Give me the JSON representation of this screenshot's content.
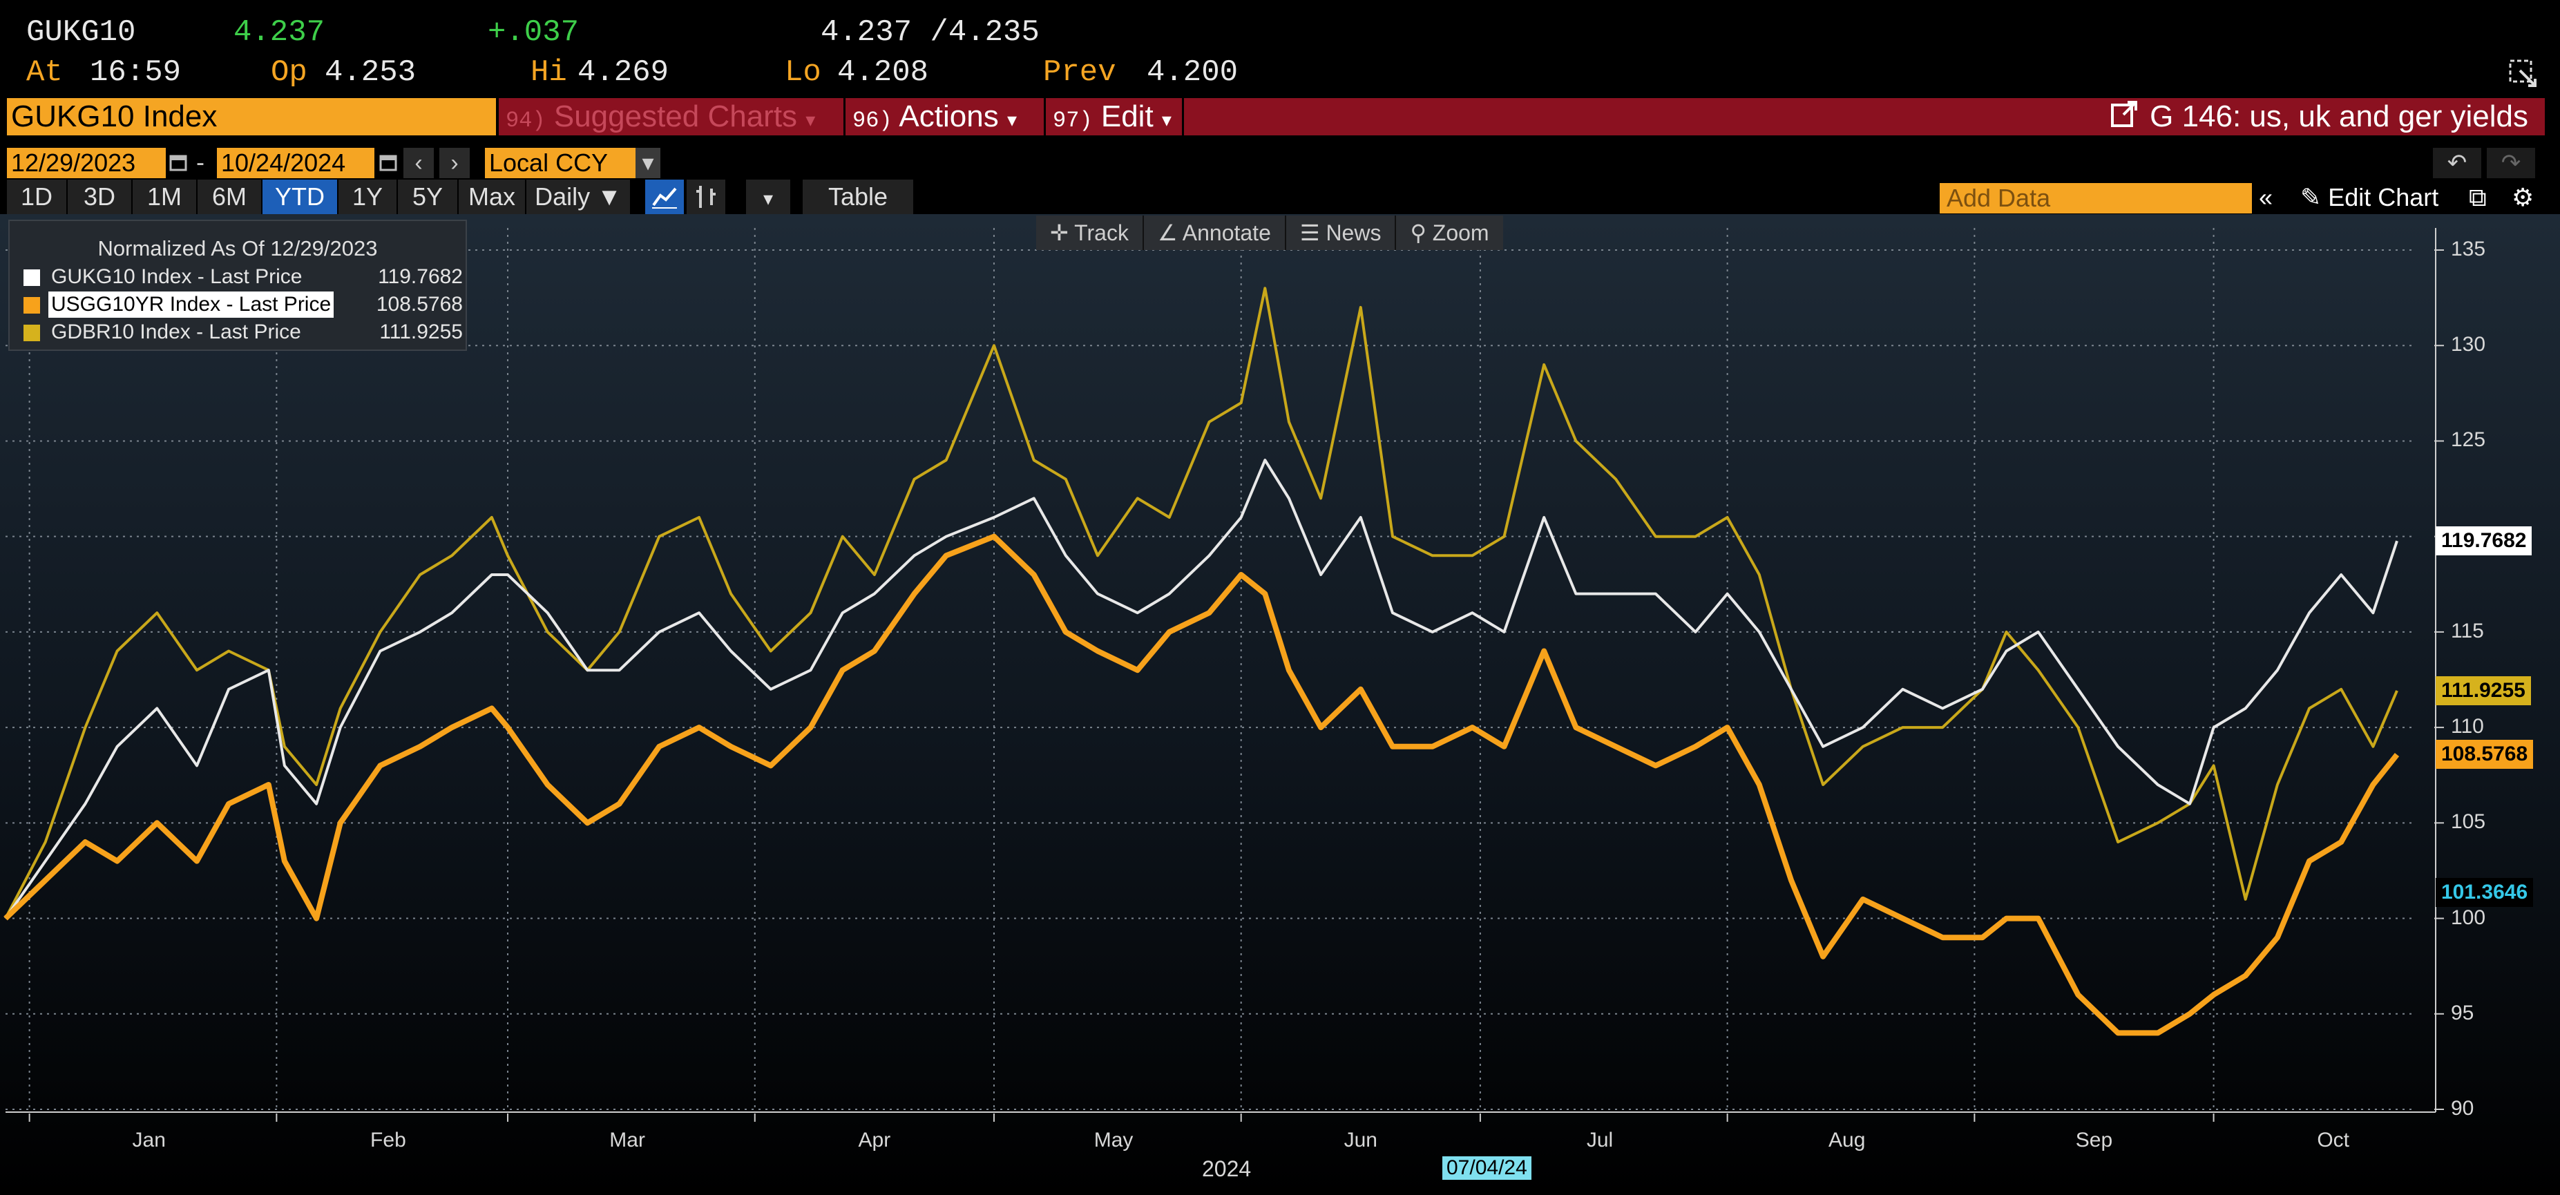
{
  "quote": {
    "ticker": "GUKG10",
    "last": "4.237",
    "change": "+.037",
    "bid_ask": "4.237 /4.235",
    "at_label": "At",
    "at_time": "16:59",
    "op_label": "Op",
    "op_value": "4.253",
    "hi_label": "Hi",
    "hi_value": "4.269",
    "lo_label": "Lo",
    "lo_value": "4.208",
    "prev_label": "Prev",
    "prev_value": "4.200"
  },
  "titlebar": {
    "security": "GUKG10 Index",
    "suggested_num": "94)",
    "suggested_label": "Suggested Charts",
    "actions_num": "96)",
    "actions_label": "Actions",
    "edit_num": "97)",
    "edit_label": "Edit",
    "chart_title": "G 146: us, uk and ger yields"
  },
  "daterow": {
    "start_date": "12/29/2023",
    "separator": "-",
    "end_date": "10/24/2024",
    "currency": "Local CCY"
  },
  "tabs": [
    "1D",
    "3D",
    "1M",
    "6M",
    "YTD",
    "1Y",
    "5Y",
    "Max"
  ],
  "active_tab": "YTD",
  "frequency": "Daily",
  "table_label": "Table",
  "add_data_placeholder": "Add Data",
  "edit_chart_label": "Edit Chart",
  "chart_toolbar": {
    "track": "Track",
    "annotate": "Annotate",
    "news": "News",
    "zoom": "Zoom"
  },
  "colors": {
    "gukg10": "#e8e8e8",
    "usgg10yr": "#f7a21b",
    "gdbr10": "#c9a81a",
    "accent_orange": "#f5a523",
    "title_red": "#8b1120",
    "active_blue": "#1d5fb8"
  },
  "legend": {
    "header": "Normalized As Of 12/29/2023",
    "items": [
      {
        "name": "GUKG10 Index - Last Price",
        "value": "119.7682",
        "color": "#ffffff"
      },
      {
        "name": "USGG10YR Index - Last Price",
        "value": "108.5768",
        "color": "#f7a21b"
      },
      {
        "name": "GDBR10 Index - Last Price",
        "value": "111.9255",
        "color": "#d6b21d"
      }
    ]
  },
  "last_tags": [
    {
      "value": "119.7682",
      "y": 119.7682,
      "bg": "#ffffff",
      "fg": "#000000"
    },
    {
      "value": "111.9255",
      "y": 111.9255,
      "bg": "#d6b21d",
      "fg": "#000000"
    },
    {
      "value": "108.5768",
      "y": 108.5768,
      "bg": "#f7a21b",
      "fg": "#000000"
    },
    {
      "value": "101.3646",
      "y": 101.3646,
      "bg": "#000000",
      "fg": "#35c8e8"
    }
  ],
  "year_label": "2024",
  "crosshair_date": "07/04/24",
  "chart_data": {
    "type": "line",
    "title": "G 146: us, uk and ger yields",
    "subtitle": "Normalized As Of 12/29/2023",
    "xlabel": "2024",
    "ylabel": "",
    "ylim": [
      90,
      136
    ],
    "yticks": [
      90,
      95,
      100,
      105,
      110,
      115,
      120,
      125,
      130,
      135
    ],
    "x_range": [
      "2023-12-29",
      "2024-10-24"
    ],
    "months": [
      "Jan",
      "Feb",
      "Mar",
      "Apr",
      "May",
      "Jun",
      "Jul",
      "Aug",
      "Sep",
      "Oct"
    ],
    "series": [
      {
        "name": "GUKG10 Index - Last Price",
        "color": "#e8e8e8",
        "width": 2,
        "points": [
          [
            "2023-12-29",
            100
          ],
          [
            "2024-01-03",
            103
          ],
          [
            "2024-01-08",
            106
          ],
          [
            "2024-01-12",
            109
          ],
          [
            "2024-01-17",
            111
          ],
          [
            "2024-01-22",
            108
          ],
          [
            "2024-01-26",
            112
          ],
          [
            "2024-01-31",
            113
          ],
          [
            "2024-02-02",
            108
          ],
          [
            "2024-02-06",
            106
          ],
          [
            "2024-02-09",
            110
          ],
          [
            "2024-02-14",
            114
          ],
          [
            "2024-02-19",
            115
          ],
          [
            "2024-02-23",
            116
          ],
          [
            "2024-02-28",
            118
          ],
          [
            "2024-03-01",
            118
          ],
          [
            "2024-03-06",
            116
          ],
          [
            "2024-03-11",
            113
          ],
          [
            "2024-03-15",
            113
          ],
          [
            "2024-03-20",
            115
          ],
          [
            "2024-03-25",
            116
          ],
          [
            "2024-03-29",
            114
          ],
          [
            "2024-04-03",
            112
          ],
          [
            "2024-04-08",
            113
          ],
          [
            "2024-04-12",
            116
          ],
          [
            "2024-04-16",
            117
          ],
          [
            "2024-04-21",
            119
          ],
          [
            "2024-04-25",
            120
          ],
          [
            "2024-05-01",
            121
          ],
          [
            "2024-05-06",
            122
          ],
          [
            "2024-05-10",
            119
          ],
          [
            "2024-05-14",
            117
          ],
          [
            "2024-05-19",
            116
          ],
          [
            "2024-05-23",
            117
          ],
          [
            "2024-05-28",
            119
          ],
          [
            "2024-06-01",
            121
          ],
          [
            "2024-06-04",
            124
          ],
          [
            "2024-06-07",
            122
          ],
          [
            "2024-06-11",
            118
          ],
          [
            "2024-06-16",
            121
          ],
          [
            "2024-06-20",
            116
          ],
          [
            "2024-06-25",
            115
          ],
          [
            "2024-06-30",
            116
          ],
          [
            "2024-07-04",
            115
          ],
          [
            "2024-07-09",
            121
          ],
          [
            "2024-07-13",
            117
          ],
          [
            "2024-07-18",
            117
          ],
          [
            "2024-07-23",
            117
          ],
          [
            "2024-07-28",
            115
          ],
          [
            "2024-08-01",
            117
          ],
          [
            "2024-08-05",
            115
          ],
          [
            "2024-08-09",
            112
          ],
          [
            "2024-08-13",
            109
          ],
          [
            "2024-08-18",
            110
          ],
          [
            "2024-08-23",
            112
          ],
          [
            "2024-08-28",
            111
          ],
          [
            "2024-09-02",
            112
          ],
          [
            "2024-09-05",
            114
          ],
          [
            "2024-09-09",
            115
          ],
          [
            "2024-09-14",
            112
          ],
          [
            "2024-09-19",
            109
          ],
          [
            "2024-09-24",
            107
          ],
          [
            "2024-09-28",
            106
          ],
          [
            "2024-10-01",
            110
          ],
          [
            "2024-10-05",
            111
          ],
          [
            "2024-10-09",
            113
          ],
          [
            "2024-10-13",
            116
          ],
          [
            "2024-10-17",
            118
          ],
          [
            "2024-10-21",
            116
          ],
          [
            "2024-10-24",
            119.7682
          ]
        ]
      },
      {
        "name": "USGG10YR Index - Last Price",
        "color": "#f7a21b",
        "width": 4,
        "points": [
          [
            "2023-12-29",
            100
          ],
          [
            "2024-01-03",
            102
          ],
          [
            "2024-01-08",
            104
          ],
          [
            "2024-01-12",
            103
          ],
          [
            "2024-01-17",
            105
          ],
          [
            "2024-01-22",
            103
          ],
          [
            "2024-01-26",
            106
          ],
          [
            "2024-01-31",
            107
          ],
          [
            "2024-02-02",
            103
          ],
          [
            "2024-02-06",
            100
          ],
          [
            "2024-02-09",
            105
          ],
          [
            "2024-02-14",
            108
          ],
          [
            "2024-02-19",
            109
          ],
          [
            "2024-02-23",
            110
          ],
          [
            "2024-02-28",
            111
          ],
          [
            "2024-03-01",
            110
          ],
          [
            "2024-03-06",
            107
          ],
          [
            "2024-03-11",
            105
          ],
          [
            "2024-03-15",
            106
          ],
          [
            "2024-03-20",
            109
          ],
          [
            "2024-03-25",
            110
          ],
          [
            "2024-03-29",
            109
          ],
          [
            "2024-04-03",
            108
          ],
          [
            "2024-04-08",
            110
          ],
          [
            "2024-04-12",
            113
          ],
          [
            "2024-04-16",
            114
          ],
          [
            "2024-04-21",
            117
          ],
          [
            "2024-04-25",
            119
          ],
          [
            "2024-05-01",
            120
          ],
          [
            "2024-05-06",
            118
          ],
          [
            "2024-05-10",
            115
          ],
          [
            "2024-05-14",
            114
          ],
          [
            "2024-05-19",
            113
          ],
          [
            "2024-05-23",
            115
          ],
          [
            "2024-05-28",
            116
          ],
          [
            "2024-06-01",
            118
          ],
          [
            "2024-06-04",
            117
          ],
          [
            "2024-06-07",
            113
          ],
          [
            "2024-06-11",
            110
          ],
          [
            "2024-06-16",
            112
          ],
          [
            "2024-06-20",
            109
          ],
          [
            "2024-06-25",
            109
          ],
          [
            "2024-06-30",
            110
          ],
          [
            "2024-07-04",
            109
          ],
          [
            "2024-07-09",
            114
          ],
          [
            "2024-07-13",
            110
          ],
          [
            "2024-07-18",
            109
          ],
          [
            "2024-07-23",
            108
          ],
          [
            "2024-07-28",
            109
          ],
          [
            "2024-08-01",
            110
          ],
          [
            "2024-08-05",
            107
          ],
          [
            "2024-08-09",
            102
          ],
          [
            "2024-08-13",
            98
          ],
          [
            "2024-08-18",
            101
          ],
          [
            "2024-08-23",
            100
          ],
          [
            "2024-08-28",
            99
          ],
          [
            "2024-09-02",
            99
          ],
          [
            "2024-09-05",
            100
          ],
          [
            "2024-09-09",
            100
          ],
          [
            "2024-09-14",
            96
          ],
          [
            "2024-09-19",
            94
          ],
          [
            "2024-09-24",
            94
          ],
          [
            "2024-09-28",
            95
          ],
          [
            "2024-10-01",
            96
          ],
          [
            "2024-10-05",
            97
          ],
          [
            "2024-10-09",
            99
          ],
          [
            "2024-10-13",
            103
          ],
          [
            "2024-10-17",
            104
          ],
          [
            "2024-10-21",
            107
          ],
          [
            "2024-10-24",
            108.5768
          ]
        ]
      },
      {
        "name": "GDBR10 Index - Last Price",
        "color": "#c9a81a",
        "width": 2,
        "points": [
          [
            "2023-12-29",
            100
          ],
          [
            "2024-01-03",
            104
          ],
          [
            "2024-01-08",
            110
          ],
          [
            "2024-01-12",
            114
          ],
          [
            "2024-01-17",
            116
          ],
          [
            "2024-01-22",
            113
          ],
          [
            "2024-01-26",
            114
          ],
          [
            "2024-01-31",
            113
          ],
          [
            "2024-02-02",
            109
          ],
          [
            "2024-02-06",
            107
          ],
          [
            "2024-02-09",
            111
          ],
          [
            "2024-02-14",
            115
          ],
          [
            "2024-02-19",
            118
          ],
          [
            "2024-02-23",
            119
          ],
          [
            "2024-02-28",
            121
          ],
          [
            "2024-03-01",
            119
          ],
          [
            "2024-03-06",
            115
          ],
          [
            "2024-03-11",
            113
          ],
          [
            "2024-03-15",
            115
          ],
          [
            "2024-03-20",
            120
          ],
          [
            "2024-03-25",
            121
          ],
          [
            "2024-03-29",
            117
          ],
          [
            "2024-04-03",
            114
          ],
          [
            "2024-04-08",
            116
          ],
          [
            "2024-04-12",
            120
          ],
          [
            "2024-04-16",
            118
          ],
          [
            "2024-04-21",
            123
          ],
          [
            "2024-04-25",
            124
          ],
          [
            "2024-05-01",
            130
          ],
          [
            "2024-05-06",
            124
          ],
          [
            "2024-05-10",
            123
          ],
          [
            "2024-05-14",
            119
          ],
          [
            "2024-05-19",
            122
          ],
          [
            "2024-05-23",
            121
          ],
          [
            "2024-05-28",
            126
          ],
          [
            "2024-06-01",
            127
          ],
          [
            "2024-06-04",
            133
          ],
          [
            "2024-06-07",
            126
          ],
          [
            "2024-06-11",
            122
          ],
          [
            "2024-06-16",
            132
          ],
          [
            "2024-06-20",
            120
          ],
          [
            "2024-06-25",
            119
          ],
          [
            "2024-06-30",
            119
          ],
          [
            "2024-07-04",
            120
          ],
          [
            "2024-07-09",
            129
          ],
          [
            "2024-07-13",
            125
          ],
          [
            "2024-07-18",
            123
          ],
          [
            "2024-07-23",
            120
          ],
          [
            "2024-07-28",
            120
          ],
          [
            "2024-08-01",
            121
          ],
          [
            "2024-08-05",
            118
          ],
          [
            "2024-08-09",
            112
          ],
          [
            "2024-08-13",
            107
          ],
          [
            "2024-08-18",
            109
          ],
          [
            "2024-08-23",
            110
          ],
          [
            "2024-08-28",
            110
          ],
          [
            "2024-09-02",
            112
          ],
          [
            "2024-09-05",
            115
          ],
          [
            "2024-09-09",
            113
          ],
          [
            "2024-09-14",
            110
          ],
          [
            "2024-09-19",
            104
          ],
          [
            "2024-09-24",
            105
          ],
          [
            "2024-09-28",
            106
          ],
          [
            "2024-10-01",
            108
          ],
          [
            "2024-10-05",
            101
          ],
          [
            "2024-10-09",
            107
          ],
          [
            "2024-10-13",
            111
          ],
          [
            "2024-10-17",
            112
          ],
          [
            "2024-10-21",
            109
          ],
          [
            "2024-10-24",
            111.9255
          ]
        ]
      }
    ]
  }
}
